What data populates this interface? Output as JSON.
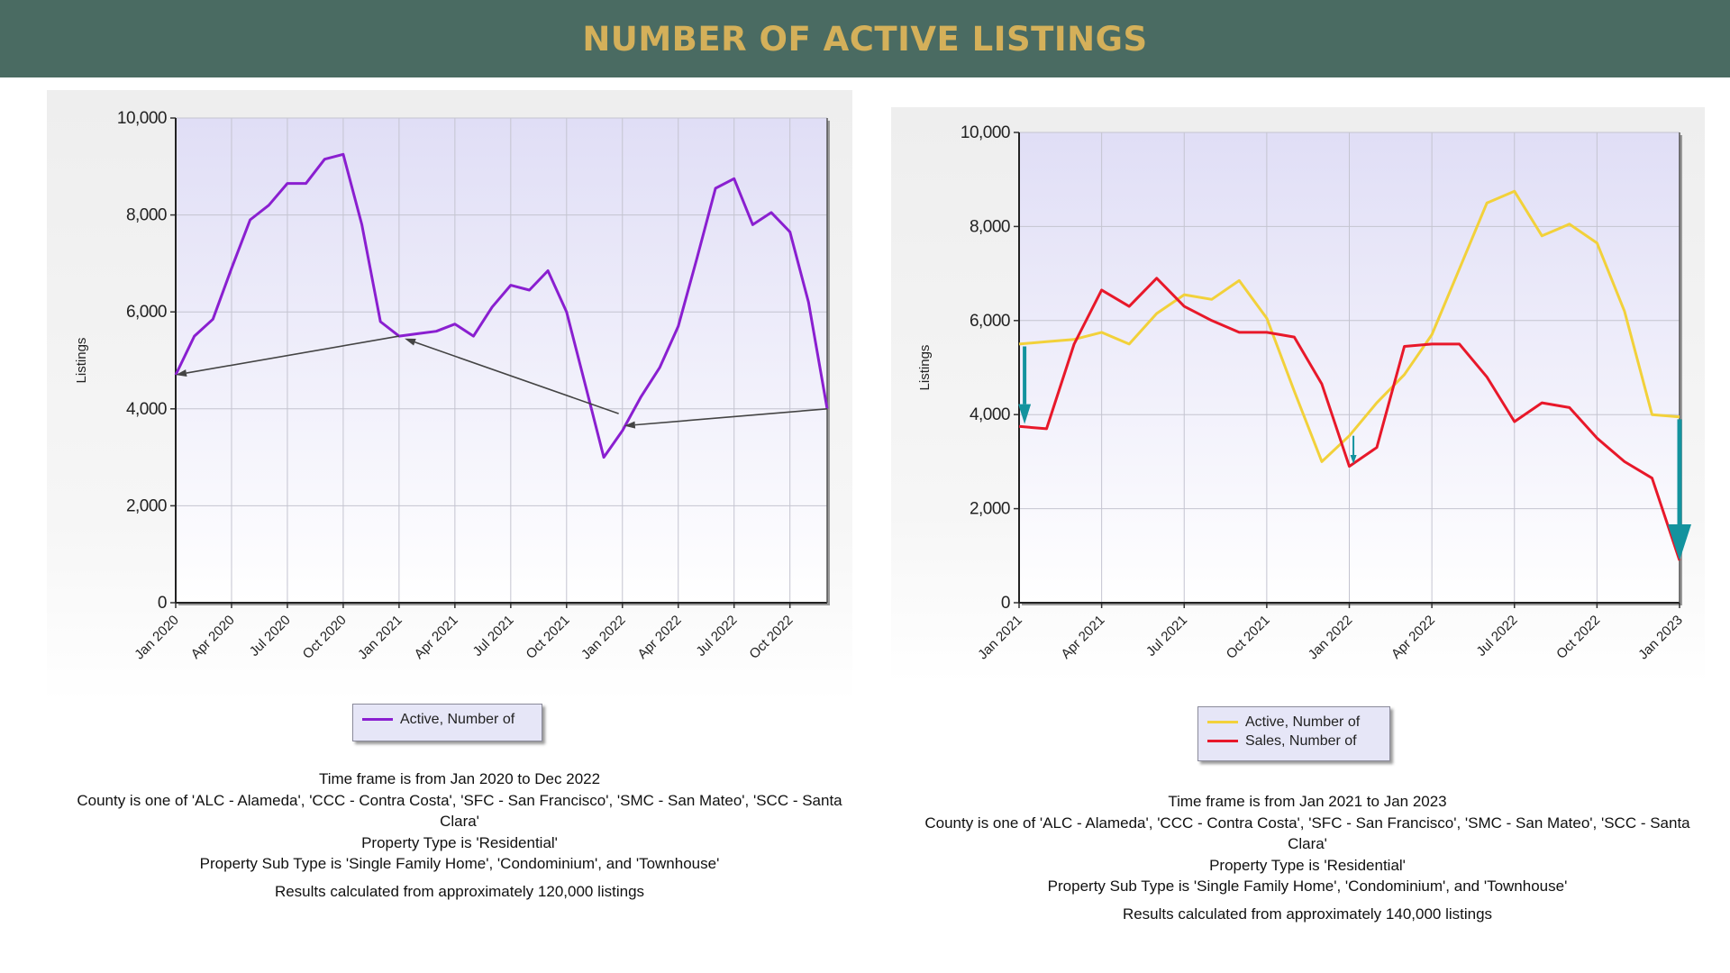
{
  "header": {
    "title": "NUMBER OF ACTIVE LISTINGS"
  },
  "colors": {
    "header_bg": "#4a6b62",
    "title": "#d4b05a",
    "active_left": "#8a1fd0",
    "active_right": "#f2d13a",
    "sales": "#e8182a",
    "annotation_teal": "#13939e",
    "annotation_gray": "#444444"
  },
  "left": {
    "legend": [
      "Active, Number of"
    ],
    "caption": [
      "Time frame is from Jan 2020 to Dec 2022",
      "County is one of 'ALC - Alameda', 'CCC - Contra Costa', 'SFC - San Francisco', 'SMC - San Mateo', 'SCC - Santa Clara'",
      "Property Type is 'Residential'",
      "Property Sub Type is 'Single Family Home', 'Condominium', and 'Townhouse'",
      "Results calculated from approximately 120,000 listings"
    ]
  },
  "right": {
    "legend": [
      "Active, Number of",
      "Sales, Number of"
    ],
    "caption": [
      "Time frame is from Jan 2021 to Jan 2023",
      "County is one of 'ALC - Alameda', 'CCC - Contra Costa', 'SFC - San Francisco', 'SMC - San Mateo', 'SCC - Santa Clara'",
      "Property Type is 'Residential'",
      "Property Sub Type is 'Single Family Home', 'Condominium', and 'Townhouse'",
      "Results calculated from approximately 140,000 listings"
    ]
  },
  "chart_data": [
    {
      "type": "line",
      "title": "",
      "xlabel": "",
      "ylabel": "Listings",
      "ylim": [
        0,
        10000
      ],
      "yticks": [
        0,
        2000,
        4000,
        6000,
        8000,
        10000
      ],
      "ytick_labels": [
        "0",
        "2,000",
        "4,000",
        "6,000",
        "8,000",
        "10,000"
      ],
      "x_range": [
        0,
        35
      ],
      "xticks": [
        0,
        3,
        6,
        9,
        12,
        15,
        18,
        21,
        24,
        27,
        30,
        33
      ],
      "xtick_labels": [
        "Jan 2020",
        "Apr 2020",
        "Jul 2020",
        "Oct 2020",
        "Jan 2021",
        "Apr 2021",
        "Jul 2021",
        "Oct 2021",
        "Jan 2022",
        "Apr 2022",
        "Jul 2022",
        "Oct 2022"
      ],
      "grid": true,
      "legend_position": "bottom-center",
      "series": [
        {
          "name": "Active, Number of",
          "color": "#8a1fd0",
          "values": [
            4700,
            5500,
            5850,
            6900,
            7900,
            8200,
            8650,
            8650,
            9150,
            9250,
            7800,
            5800,
            5500,
            5550,
            5600,
            5750,
            5500,
            6100,
            6550,
            6450,
            6850,
            6000,
            4500,
            3000,
            3550,
            4250,
            4850,
            5700,
            7100,
            8550,
            8750,
            7800,
            8050,
            7650,
            6200,
            4000
          ]
        }
      ],
      "annotations": [
        {
          "type": "arrow",
          "color": "#444444",
          "from": [
            12,
            5500
          ],
          "to": [
            0,
            4700
          ]
        },
        {
          "type": "arrow",
          "color": "#444444",
          "from": [
            23.8,
            3900
          ],
          "to": [
            12.3,
            5450
          ]
        },
        {
          "type": "arrow",
          "color": "#444444",
          "from": [
            35,
            4000
          ],
          "to": [
            24.1,
            3650
          ]
        }
      ]
    },
    {
      "type": "line",
      "title": "",
      "xlabel": "",
      "ylabel": "Listings",
      "ylim": [
        0,
        10000
      ],
      "yticks": [
        0,
        2000,
        4000,
        6000,
        8000,
        10000
      ],
      "ytick_labels": [
        "0",
        "2,000",
        "4,000",
        "6,000",
        "8,000",
        "10,000"
      ],
      "x_range": [
        0,
        24
      ],
      "xticks": [
        0,
        3,
        6,
        9,
        12,
        15,
        18,
        21,
        24
      ],
      "xtick_labels": [
        "Jan 2021",
        "Apr 2021",
        "Jul 2021",
        "Oct 2021",
        "Jan 2022",
        "Apr 2022",
        "Jul 2022",
        "Oct 2022",
        "Jan 2023"
      ],
      "grid": true,
      "legend_position": "bottom-center",
      "series": [
        {
          "name": "Active, Number of",
          "color": "#f2d13a",
          "values": [
            5500,
            5550,
            5600,
            5750,
            5500,
            6150,
            6550,
            6450,
            6850,
            6050,
            4500,
            3000,
            3550,
            4250,
            4850,
            5700,
            7100,
            8500,
            8750,
            7800,
            8050,
            7650,
            6200,
            4000,
            3950
          ]
        },
        {
          "name": "Sales, Number of",
          "color": "#e8182a",
          "values": [
            3750,
            3700,
            5500,
            6650,
            6300,
            6900,
            6300,
            6000,
            5750,
            5750,
            5650,
            4650,
            2900,
            3300,
            5450,
            5500,
            5500,
            4800,
            3850,
            4250,
            4150,
            3500,
            3000,
            2650,
            900
          ]
        }
      ],
      "annotations": [
        {
          "type": "arrow",
          "color": "#13939e",
          "from": [
            0.2,
            5450
          ],
          "to": [
            0.2,
            3800
          ],
          "weight": "medium"
        },
        {
          "type": "arrow",
          "color": "#13939e",
          "from": [
            12.15,
            3550
          ],
          "to": [
            12.15,
            2950
          ],
          "weight": "thin"
        },
        {
          "type": "arrow",
          "color": "#13939e",
          "from": [
            24,
            3900
          ],
          "to": [
            24,
            900
          ],
          "weight": "heavy"
        }
      ]
    }
  ]
}
